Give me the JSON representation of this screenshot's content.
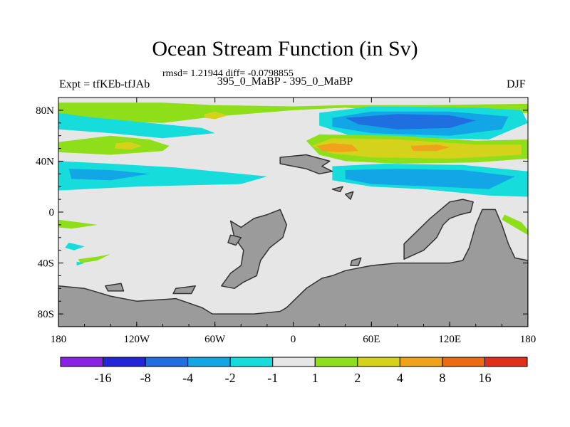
{
  "header": {
    "title": "Ocean Stream Function (in Sv)",
    "stats": "rmsd= 1.21944 diff= -0.0798855",
    "experiment": "Expt = tfKEb-tfJAb",
    "period": "395_0_MaBP - 395_0_MaBP",
    "season": "DJF"
  },
  "chart_data": {
    "type": "heatmap",
    "title": "Ocean Stream Function (in Sv)",
    "xlabel": "",
    "ylabel": "",
    "xlim": [
      -180,
      180
    ],
    "ylim": [
      -90,
      90
    ],
    "x_ticks": [
      {
        "value": -180,
        "label": "180"
      },
      {
        "value": -120,
        "label": "120W"
      },
      {
        "value": -60,
        "label": "60W"
      },
      {
        "value": 0,
        "label": "0"
      },
      {
        "value": 60,
        "label": "60E"
      },
      {
        "value": 120,
        "label": "120E"
      },
      {
        "value": 180,
        "label": "180"
      }
    ],
    "y_ticks": [
      {
        "value": 80,
        "label": "80N"
      },
      {
        "value": 40,
        "label": "40N"
      },
      {
        "value": 0,
        "label": "0"
      },
      {
        "value": -40,
        "label": "40S"
      },
      {
        "value": -80,
        "label": "80S"
      }
    ],
    "grid": false,
    "legend_position": "bottom",
    "levels": [
      -16,
      -8,
      -4,
      -2,
      -1,
      1,
      2,
      4,
      8,
      16
    ],
    "colorbar_labels": [
      "-16",
      "-8",
      "-4",
      "-2",
      "-1",
      "1",
      "2",
      "4",
      "8",
      "16"
    ],
    "colors": [
      "#8a22e6",
      "#2424d8",
      "#1f6fe0",
      "#12a6e6",
      "#17dcdc",
      "#e6e6e6",
      "#8ede1a",
      "#d4d21a",
      "#f0a21a",
      "#eb6a12",
      "#e1301a"
    ],
    "land_color": "#9b9b9b",
    "background_field": "#e6e6e6",
    "regions": [
      {
        "level": 1,
        "color_index": 6,
        "coords": [
          [
            -180,
            86
          ],
          [
            -100,
            86
          ],
          [
            -60,
            84
          ],
          [
            0,
            83
          ],
          [
            40,
            84
          ],
          [
            100,
            84
          ],
          [
            180,
            85
          ],
          [
            180,
            78
          ],
          [
            150,
            75
          ],
          [
            100,
            78
          ],
          [
            40,
            82
          ],
          [
            0,
            80
          ],
          [
            -60,
            75
          ],
          [
            -100,
            70
          ],
          [
            -160,
            72
          ],
          [
            -180,
            74
          ]
        ]
      },
      {
        "level": 1,
        "color_index": 6,
        "coords": [
          [
            -180,
            55
          ],
          [
            -140,
            60
          ],
          [
            -110,
            57
          ],
          [
            -95,
            52
          ],
          [
            -100,
            48
          ],
          [
            -140,
            45
          ],
          [
            -180,
            47
          ]
        ]
      },
      {
        "level": 2,
        "color_index": 7,
        "coords": [
          [
            -136,
            54
          ],
          [
            -125,
            55
          ],
          [
            -116,
            52
          ],
          [
            -125,
            49
          ],
          [
            -137,
            50
          ]
        ]
      },
      {
        "level": 2,
        "color_index": 7,
        "coords": [
          [
            -68,
            77
          ],
          [
            -60,
            79
          ],
          [
            -50,
            76
          ],
          [
            -60,
            73
          ],
          [
            -68,
            74
          ]
        ]
      },
      {
        "level": -1,
        "color_index": 4,
        "coords": [
          [
            -180,
            78
          ],
          [
            -160,
            75
          ],
          [
            -110,
            70
          ],
          [
            -70,
            66
          ],
          [
            -60,
            62
          ],
          [
            -100,
            58
          ],
          [
            -140,
            62
          ],
          [
            -180,
            65
          ]
        ]
      },
      {
        "level": -1,
        "color_index": 4,
        "coords": [
          [
            -180,
            40
          ],
          [
            -140,
            38
          ],
          [
            -90,
            35
          ],
          [
            -20,
            28
          ],
          [
            -40,
            22
          ],
          [
            -120,
            20
          ],
          [
            -180,
            17
          ]
        ]
      },
      {
        "level": -2,
        "color_index": 3,
        "coords": [
          [
            -172,
            34
          ],
          [
            -140,
            33
          ],
          [
            -110,
            30
          ],
          [
            -140,
            25
          ],
          [
            -170,
            26
          ]
        ]
      },
      {
        "level": -1,
        "color_index": 4,
        "coords": [
          [
            20,
            78
          ],
          [
            60,
            83
          ],
          [
            140,
            82
          ],
          [
            175,
            80
          ],
          [
            180,
            70
          ],
          [
            150,
            57
          ],
          [
            100,
            58
          ],
          [
            50,
            58
          ],
          [
            20,
            68
          ]
        ]
      },
      {
        "level": -2,
        "color_index": 3,
        "coords": [
          [
            30,
            74
          ],
          [
            60,
            79
          ],
          [
            120,
            79
          ],
          [
            165,
            75
          ],
          [
            160,
            65
          ],
          [
            120,
            60
          ],
          [
            60,
            62
          ],
          [
            30,
            67
          ]
        ]
      },
      {
        "level": -4,
        "color_index": 2,
        "coords": [
          [
            40,
            74
          ],
          [
            80,
            77
          ],
          [
            120,
            76
          ],
          [
            140,
            72
          ],
          [
            120,
            66
          ],
          [
            80,
            65
          ],
          [
            50,
            69
          ]
        ]
      },
      {
        "level": 1,
        "color_index": 6,
        "coords": [
          [
            10,
            56
          ],
          [
            20,
            61
          ],
          [
            80,
            60
          ],
          [
            140,
            56
          ],
          [
            180,
            57
          ],
          [
            180,
            42
          ],
          [
            140,
            39
          ],
          [
            80,
            38
          ],
          [
            40,
            40
          ],
          [
            20,
            45
          ]
        ]
      },
      {
        "level": 2,
        "color_index": 7,
        "coords": [
          [
            14,
            52
          ],
          [
            30,
            58
          ],
          [
            80,
            57
          ],
          [
            140,
            53
          ],
          [
            175,
            53
          ],
          [
            175,
            45
          ],
          [
            120,
            42
          ],
          [
            60,
            43
          ],
          [
            30,
            46
          ]
        ]
      },
      {
        "level": 4,
        "color_index": 8,
        "coords": [
          [
            18,
            52
          ],
          [
            30,
            54
          ],
          [
            45,
            53
          ],
          [
            50,
            48
          ],
          [
            35,
            47
          ],
          [
            22,
            48
          ]
        ]
      },
      {
        "level": 4,
        "color_index": 8,
        "coords": [
          [
            90,
            52
          ],
          [
            110,
            53
          ],
          [
            120,
            51
          ],
          [
            110,
            48
          ],
          [
            92,
            48
          ]
        ]
      },
      {
        "level": -1,
        "color_index": 4,
        "coords": [
          [
            30,
            36
          ],
          [
            70,
            38
          ],
          [
            130,
            37
          ],
          [
            180,
            32
          ],
          [
            180,
            12
          ],
          [
            150,
            13
          ],
          [
            100,
            18
          ],
          [
            60,
            20
          ],
          [
            30,
            25
          ]
        ]
      },
      {
        "level": -2,
        "color_index": 3,
        "coords": [
          [
            40,
            33
          ],
          [
            80,
            34
          ],
          [
            130,
            33
          ],
          [
            170,
            28
          ],
          [
            150,
            18
          ],
          [
            110,
            20
          ],
          [
            60,
            22
          ],
          [
            40,
            26
          ]
        ]
      },
      {
        "level": 1,
        "color_index": 6,
        "coords": [
          [
            -180,
            -6
          ],
          [
            -165,
            -8
          ],
          [
            -150,
            -10
          ],
          [
            -170,
            -13
          ],
          [
            -180,
            -12
          ]
        ]
      },
      {
        "level": 1,
        "color_index": 6,
        "coords": [
          [
            -165,
            -37
          ],
          [
            -150,
            -35
          ],
          [
            -140,
            -33
          ],
          [
            -150,
            -38
          ],
          [
            -163,
            -40
          ]
        ]
      },
      {
        "level": 1,
        "color_index": 6,
        "coords": [
          [
            162,
            -2
          ],
          [
            175,
            -8
          ],
          [
            180,
            -14
          ],
          [
            180,
            -18
          ],
          [
            170,
            -12
          ],
          [
            160,
            -6
          ]
        ]
      },
      {
        "level": -1,
        "color_index": 4,
        "coords": [
          [
            -172,
            -24
          ],
          [
            -160,
            -27
          ],
          [
            -168,
            -30
          ],
          [
            -175,
            -28
          ]
        ]
      },
      {
        "level": -1,
        "color_index": 4,
        "coords": [
          [
            -166,
            -39
          ],
          [
            -160,
            -40
          ],
          [
            -166,
            -42
          ]
        ]
      }
    ],
    "land": [
      {
        "name": "southern",
        "coords": [
          [
            -180,
            -90
          ],
          [
            180,
            -90
          ],
          [
            180,
            -38
          ],
          [
            170,
            -36
          ],
          [
            165,
            -25
          ],
          [
            160,
            -10
          ],
          [
            155,
            2
          ],
          [
            145,
            2
          ],
          [
            140,
            -10
          ],
          [
            135,
            -28
          ],
          [
            130,
            -38
          ],
          [
            120,
            -40
          ],
          [
            100,
            -40
          ],
          [
            80,
            -40
          ],
          [
            60,
            -42
          ],
          [
            50,
            -44
          ],
          [
            40,
            -46
          ],
          [
            30,
            -50
          ],
          [
            22,
            -52
          ],
          [
            10,
            -60
          ],
          [
            0,
            -70
          ],
          [
            -5,
            -75
          ],
          [
            -10,
            -78
          ],
          [
            -30,
            -80
          ],
          [
            -50,
            -80
          ],
          [
            -62,
            -80
          ],
          [
            -70,
            -75
          ],
          [
            -90,
            -68
          ],
          [
            -120,
            -70
          ],
          [
            -140,
            -66
          ],
          [
            -160,
            -60
          ],
          [
            -180,
            -58
          ]
        ]
      },
      {
        "name": "africa-asia",
        "coords": [
          [
            85,
            -37
          ],
          [
            100,
            -30
          ],
          [
            110,
            -20
          ],
          [
            115,
            -10
          ],
          [
            120,
            -5
          ],
          [
            128,
            -2
          ],
          [
            136,
            0
          ],
          [
            138,
            8
          ],
          [
            130,
            10
          ],
          [
            120,
            8
          ],
          [
            105,
            -5
          ],
          [
            95,
            -15
          ],
          [
            85,
            -25
          ]
        ]
      },
      {
        "name": "south-america",
        "coords": [
          [
            -48,
            -7
          ],
          [
            -40,
            -12
          ],
          [
            -30,
            -5
          ],
          [
            -20,
            -2
          ],
          [
            -10,
            2
          ],
          [
            -5,
            -10
          ],
          [
            -8,
            -20
          ],
          [
            -18,
            -28
          ],
          [
            -25,
            -38
          ],
          [
            -28,
            -50
          ],
          [
            -38,
            -55
          ],
          [
            -45,
            -60
          ],
          [
            -55,
            -58
          ],
          [
            -48,
            -48
          ],
          [
            -40,
            -42
          ],
          [
            -38,
            -30
          ],
          [
            -45,
            -20
          ]
        ]
      },
      {
        "name": "small-west",
        "coords": [
          [
            -48,
            -18
          ],
          [
            -40,
            -20
          ],
          [
            -44,
            -26
          ],
          [
            -50,
            -24
          ]
        ]
      },
      {
        "name": "north-land",
        "coords": [
          [
            -10,
            43
          ],
          [
            10,
            45
          ],
          [
            28,
            40
          ],
          [
            22,
            36
          ],
          [
            30,
            32
          ],
          [
            20,
            30
          ],
          [
            10,
            34
          ],
          [
            0,
            36
          ],
          [
            -10,
            38
          ]
        ]
      },
      {
        "name": "islands-1",
        "coords": [
          [
            30,
            18
          ],
          [
            38,
            20
          ],
          [
            36,
            16
          ]
        ]
      },
      {
        "name": "islands-2",
        "coords": [
          [
            40,
            14
          ],
          [
            46,
            16
          ],
          [
            44,
            10
          ]
        ]
      },
      {
        "name": "islands-3",
        "coords": [
          [
            -144,
            -58
          ],
          [
            -132,
            -56
          ],
          [
            -130,
            -62
          ],
          [
            -142,
            -62
          ]
        ]
      },
      {
        "name": "islands-4",
        "coords": [
          [
            -90,
            -60
          ],
          [
            -75,
            -58
          ],
          [
            -78,
            -64
          ],
          [
            -92,
            -64
          ]
        ]
      },
      {
        "name": "islands-5",
        "coords": [
          [
            45,
            -38
          ],
          [
            52,
            -36
          ],
          [
            50,
            -42
          ],
          [
            44,
            -42
          ]
        ]
      }
    ]
  }
}
